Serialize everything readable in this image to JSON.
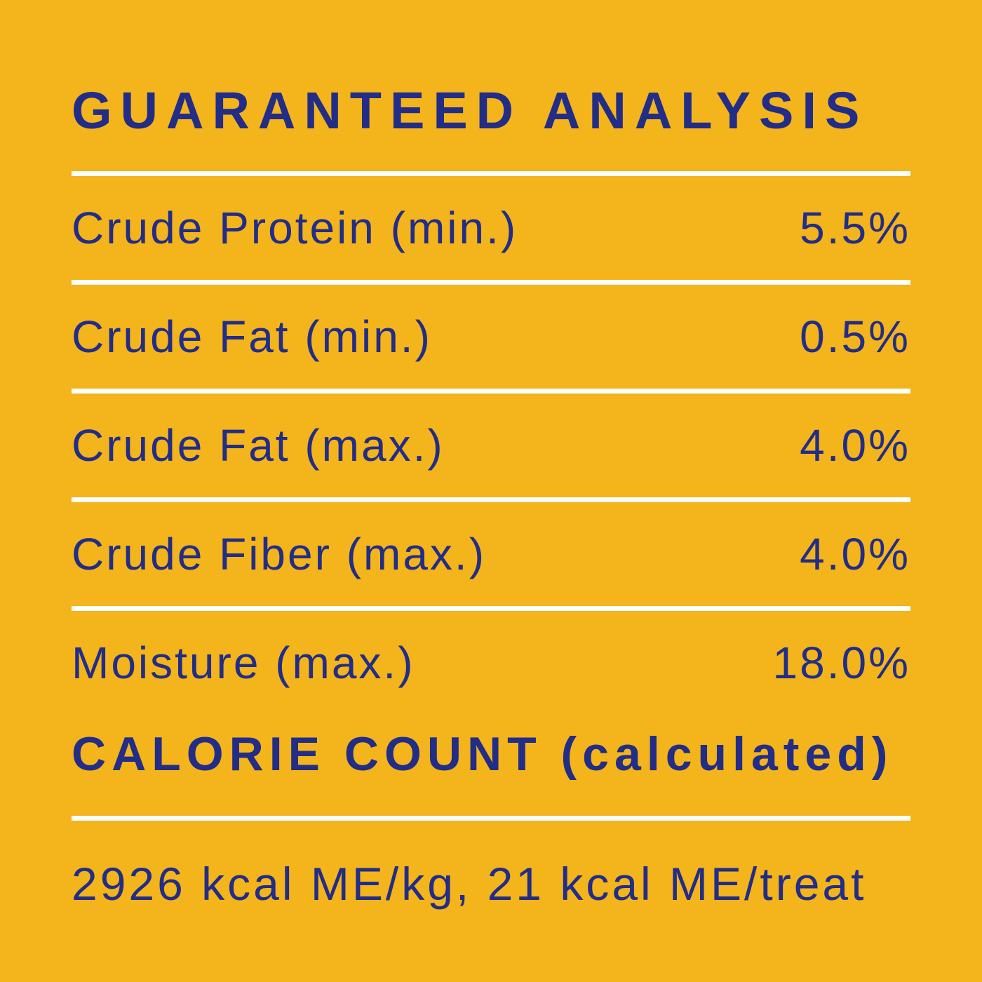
{
  "label": {
    "title": "GUARANTEED ANALYSIS",
    "rows": [
      {
        "name": "Crude Protein (min.)",
        "value": "5.5%"
      },
      {
        "name": "Crude Fat (min.)",
        "value": "0.5%"
      },
      {
        "name": "Crude Fat (max.)",
        "value": "4.0%"
      },
      {
        "name": "Crude Fiber (max.)",
        "value": "4.0%"
      },
      {
        "name": "Moisture (max.)",
        "value": "18.0%"
      }
    ],
    "calorie_heading": "CALORIE COUNT (calculated)",
    "calorie_text": "2926 kcal ME/kg, 21 kcal ME/treat",
    "colors": {
      "background": "#F3B41C",
      "text": "#222D87",
      "divider": "#FFFFFF"
    }
  }
}
